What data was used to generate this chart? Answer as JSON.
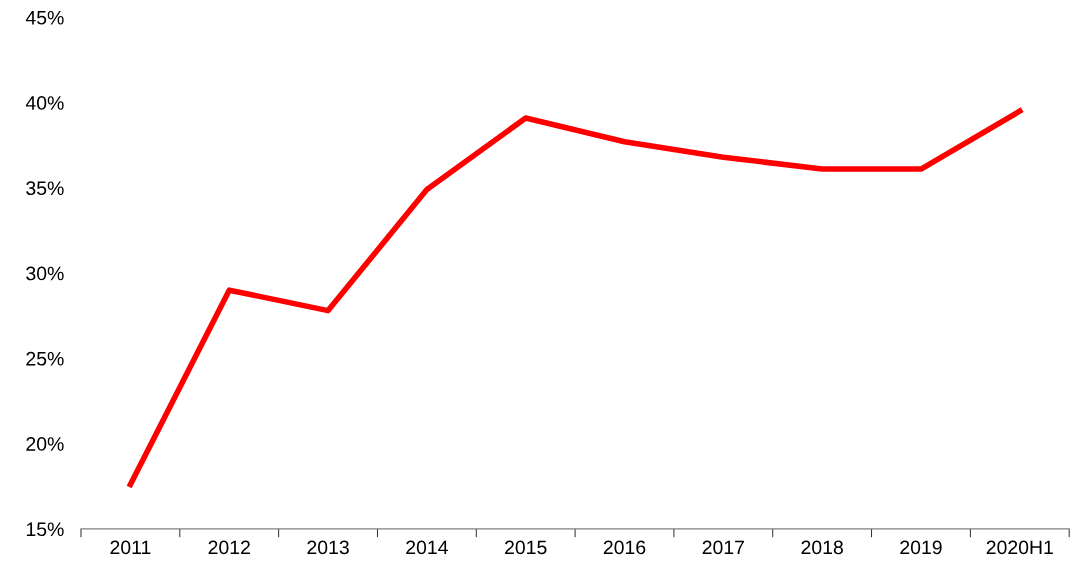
{
  "chart_data": {
    "type": "line",
    "categories": [
      "2011",
      "2012",
      "2013",
      "2014",
      "2015",
      "2016",
      "2017",
      "2018",
      "2019",
      "2020H1"
    ],
    "series": [
      {
        "color": "#ff0000",
        "values": [
          17.6,
          29.0,
          27.8,
          34.9,
          39.1,
          37.7,
          36.8,
          36.1,
          36.1,
          39.5
        ]
      }
    ],
    "ylim": [
      15,
      45
    ],
    "yticks": [
      {
        "value": 15,
        "label": "15%"
      },
      {
        "value": 20,
        "label": "20%"
      },
      {
        "value": 25,
        "label": "25%"
      },
      {
        "value": 30,
        "label": "30%"
      },
      {
        "value": 35,
        "label": "35%"
      },
      {
        "value": 40,
        "label": "40%"
      },
      {
        "value": 45,
        "label": "45%"
      }
    ],
    "grid": false,
    "legend": false,
    "marker": "none",
    "line_style": "solid"
  }
}
